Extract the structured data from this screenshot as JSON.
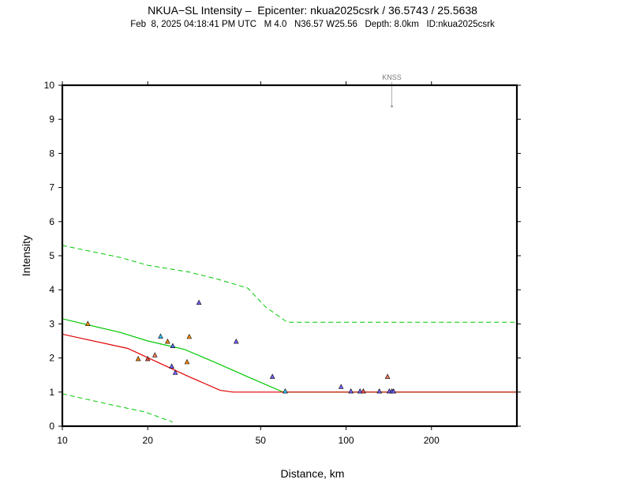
{
  "chart_data": {
    "type": "scatter",
    "title": "NKUA−SL Intensity –  Epicenter: nkua2025csrk / 36.5743 / 25.5638",
    "subtitle": "Feb  8, 2025 04:18:41 PM UTC   M 4.0   N36.57 W25.56   Depth: 8.0km   ID:nkua2025csrk",
    "xlabel": "Distance, km",
    "ylabel": "Intensity",
    "xscale": "log",
    "xlim": [
      10,
      400
    ],
    "ylim": [
      0,
      10
    ],
    "xticks": [
      10,
      20,
      50,
      100,
      200
    ],
    "yticks": [
      0,
      1,
      2,
      3,
      4,
      5,
      6,
      7,
      8,
      9,
      10
    ],
    "series": [
      {
        "role": "prediction",
        "color": "#00c800",
        "style": "solid",
        "width": 1.2,
        "x": [
          10,
          16,
          20,
          27,
          35,
          45,
          60,
          100,
          200,
          400
        ],
        "y": [
          3.15,
          2.75,
          2.5,
          2.25,
          1.85,
          1.45,
          1.0,
          1.0,
          1.0,
          1.0
        ]
      },
      {
        "role": "upper",
        "color": "#00c800",
        "style": "dashed",
        "width": 1,
        "x": [
          10,
          16,
          20,
          28,
          35,
          45,
          52,
          62,
          100,
          200,
          400
        ],
        "y": [
          5.3,
          4.95,
          4.72,
          4.52,
          4.32,
          4.05,
          3.5,
          3.05,
          3.05,
          3.05,
          3.05
        ]
      },
      {
        "role": "lower",
        "color": "#00c800",
        "style": "dashed",
        "width": 1,
        "x": [
          10,
          15,
          19.5,
          24.5
        ],
        "y": [
          0.95,
          0.62,
          0.42,
          0.12
        ]
      },
      {
        "role": "alt-prediction",
        "color": "#e00000",
        "style": "solid",
        "width": 1.2,
        "x": [
          10,
          17,
          22,
          28,
          36,
          40,
          60,
          100,
          200,
          400
        ],
        "y": [
          2.7,
          2.28,
          1.85,
          1.45,
          1.05,
          1.0,
          1.0,
          1.0,
          1.0,
          1.0
        ]
      }
    ],
    "points": [
      {
        "x": 12.3,
        "y": 3.0,
        "color": "#ff8c00"
      },
      {
        "x": 18.5,
        "y": 1.97,
        "color": "#ff8c00"
      },
      {
        "x": 20.0,
        "y": 1.97,
        "color": "#ff4b3c"
      },
      {
        "x": 21.2,
        "y": 2.08,
        "color": "#ff7a5a"
      },
      {
        "x": 22.2,
        "y": 2.63,
        "color": "#37c3ff"
      },
      {
        "x": 23.5,
        "y": 2.48,
        "color": "#ff8c00"
      },
      {
        "x": 24.5,
        "y": 2.35,
        "color": "#5a78ff"
      },
      {
        "x": 24.3,
        "y": 1.75,
        "color": "#7864ff"
      },
      {
        "x": 25.0,
        "y": 1.57,
        "color": "#7864ff"
      },
      {
        "x": 27.5,
        "y": 1.88,
        "color": "#ff8c00"
      },
      {
        "x": 28.0,
        "y": 2.62,
        "color": "#ff8c00"
      },
      {
        "x": 30.3,
        "y": 3.62,
        "color": "#7864ff"
      },
      {
        "x": 41.0,
        "y": 2.48,
        "color": "#7864ff"
      },
      {
        "x": 55.0,
        "y": 1.45,
        "color": "#7864ff"
      },
      {
        "x": 61.0,
        "y": 1.02,
        "color": "#37c3ff"
      },
      {
        "x": 96.0,
        "y": 1.15,
        "color": "#7864ff"
      },
      {
        "x": 104.0,
        "y": 1.02,
        "color": "#7864ff"
      },
      {
        "x": 112.0,
        "y": 1.02,
        "color": "#7864ff"
      },
      {
        "x": 115.0,
        "y": 1.02,
        "color": "#ff5050"
      },
      {
        "x": 131.0,
        "y": 1.02,
        "color": "#7864ff"
      },
      {
        "x": 140.0,
        "y": 1.45,
        "color": "#ff7a5a"
      },
      {
        "x": 142.0,
        "y": 1.02,
        "color": "#7864ff"
      },
      {
        "x": 145.0,
        "y": 1.02,
        "color": "#7864ff"
      },
      {
        "x": 147.0,
        "y": 1.02,
        "color": "#7864ff"
      }
    ],
    "station_marks": [
      {
        "x": 145.0,
        "y": 9.38,
        "label": "KNSS"
      }
    ],
    "grid": false
  }
}
